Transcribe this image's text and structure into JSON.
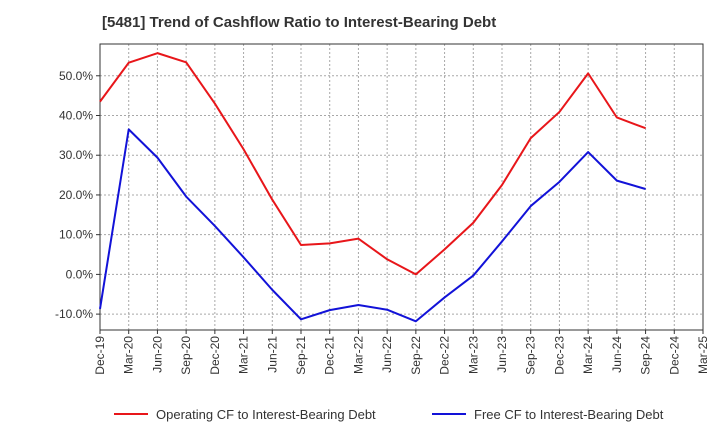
{
  "title": "[5481]  Trend of Cashflow Ratio to Interest-Bearing Debt",
  "chart_data": {
    "type": "line",
    "title": "[5481]  Trend of Cashflow Ratio to Interest-Bearing Debt",
    "xlabel": "",
    "ylabel": "",
    "categories": [
      "Dec-19",
      "Mar-20",
      "Jun-20",
      "Sep-20",
      "Dec-20",
      "Mar-21",
      "Jun-21",
      "Sep-21",
      "Dec-21",
      "Mar-22",
      "Jun-22",
      "Sep-22",
      "Dec-22",
      "Mar-23",
      "Jun-23",
      "Sep-23",
      "Dec-23",
      "Mar-24",
      "Jun-24",
      "Sep-24",
      "Dec-24",
      "Mar-25"
    ],
    "ylim": [
      -14,
      58
    ],
    "yticks": [
      -10,
      0,
      10,
      20,
      30,
      40,
      50
    ],
    "ytick_labels": [
      "-10.0%",
      "0.0%",
      "10.0%",
      "20.0%",
      "30.0%",
      "40.0%",
      "50.0%"
    ],
    "grid": true,
    "legend_position": "bottom",
    "series": [
      {
        "name": "Operating CF to Interest-Bearing Debt",
        "color": "#e8161a",
        "values": [
          43.5,
          53.3,
          55.7,
          53.4,
          43.0,
          31.5,
          18.8,
          7.4,
          7.8,
          9.0,
          3.8,
          0.0,
          6.3,
          13.0,
          22.5,
          34.3,
          40.9,
          50.6,
          39.5,
          36.8,
          null,
          null
        ]
      },
      {
        "name": "Free CF to Interest-Bearing Debt",
        "color": "#1212d8",
        "values": [
          -8.7,
          36.5,
          29.4,
          19.6,
          12.2,
          4.3,
          -3.9,
          -11.3,
          -9.0,
          -7.7,
          -8.9,
          -11.8,
          -5.8,
          -0.3,
          8.3,
          17.2,
          23.3,
          30.8,
          23.6,
          21.5,
          null,
          null
        ]
      }
    ]
  }
}
